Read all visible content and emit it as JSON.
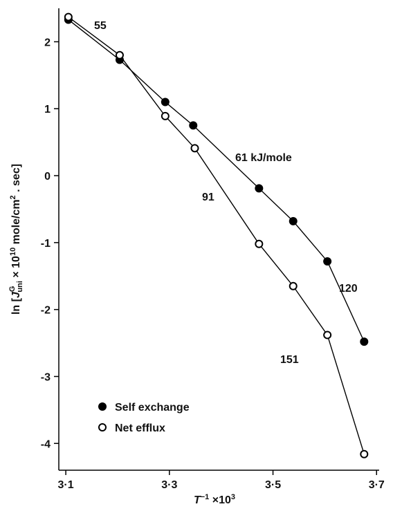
{
  "chart_data": {
    "type": "line",
    "xlabel": [
      "T",
      "−1",
      " ×10",
      "3"
    ],
    "ylabel": [
      "ln [",
      "J",
      "G",
      "uni",
      " × 10",
      "10",
      " mole/cm",
      "2",
      " . sec]"
    ],
    "xlim": [
      3.0865,
      3.705
    ],
    "ylim": [
      -4.4,
      2.5
    ],
    "xticks": [
      {
        "value": 3.1,
        "label": "3·1"
      },
      {
        "value": 3.3,
        "label": "3·3"
      },
      {
        "value": 3.5,
        "label": "3·5"
      },
      {
        "value": 3.7,
        "label": "3·7"
      }
    ],
    "yticks": [
      -4,
      -3,
      -2,
      -1,
      0,
      1,
      2
    ],
    "series": [
      {
        "name": "Self exchange",
        "color": "#000000",
        "marker": "filled",
        "x": [
          3.105,
          3.204,
          3.292,
          3.346,
          3.473,
          3.539,
          3.605,
          3.676
        ],
        "values": [
          2.33,
          1.73,
          1.1,
          0.75,
          -0.19,
          -0.68,
          -1.28,
          -2.48
        ]
      },
      {
        "name": "Net efflux",
        "color": "#000000",
        "marker": "open",
        "x": [
          3.105,
          3.204,
          3.292,
          3.349,
          3.473,
          3.539,
          3.605,
          3.676
        ],
        "values": [
          2.37,
          1.8,
          0.89,
          0.41,
          -1.02,
          -1.65,
          -2.38,
          -4.16
        ]
      }
    ],
    "annotations": [
      "55",
      "61 kJ/mole",
      "91",
      "120",
      "151"
    ]
  }
}
